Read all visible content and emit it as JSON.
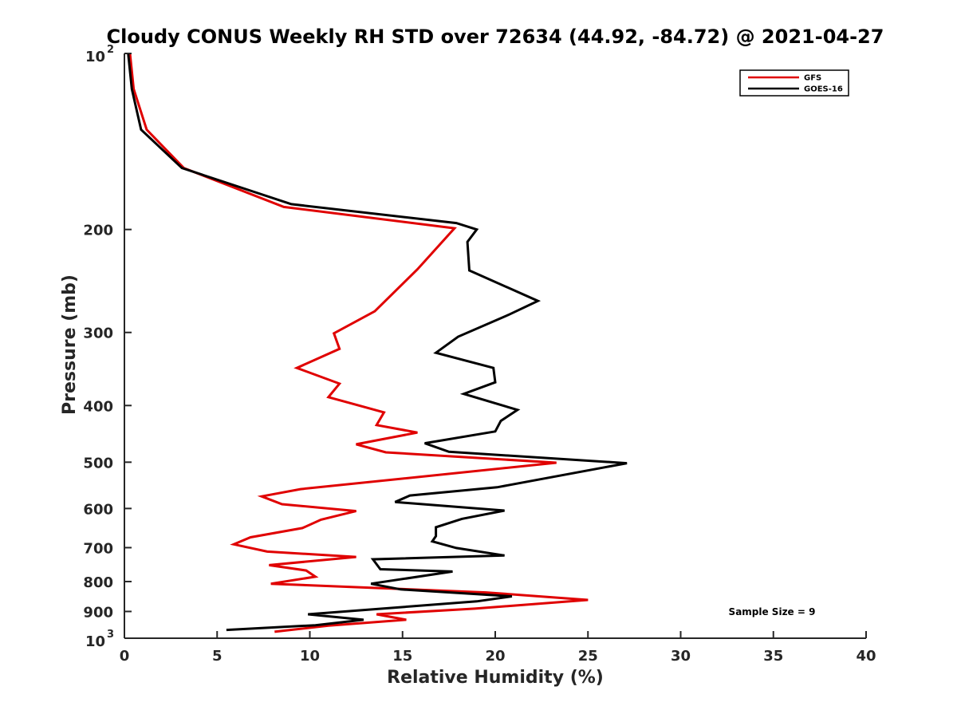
{
  "chart_data": {
    "type": "line",
    "title": "Cloudy CONUS Weekly RH STD over 72634 (44.92, -84.72) @ 2021-04-27",
    "xlabel": "Relative Humidity (%)",
    "ylabel": "Pressure (mb)",
    "xlim": [
      0,
      40
    ],
    "ylim": [
      100,
      1000
    ],
    "y_scale": "log",
    "y_reversed": true,
    "x_ticks": [
      "0",
      "5",
      "10",
      "15",
      "20",
      "25",
      "30",
      "35",
      "40"
    ],
    "y_ticks": [
      {
        "value": 100,
        "base": "10",
        "exp": "2"
      },
      {
        "value": 200,
        "label": "200"
      },
      {
        "value": 300,
        "label": "300"
      },
      {
        "value": 400,
        "label": "400"
      },
      {
        "value": 500,
        "label": "500"
      },
      {
        "value": 600,
        "label": "600"
      },
      {
        "value": 700,
        "label": "700"
      },
      {
        "value": 800,
        "label": "800"
      },
      {
        "value": 900,
        "label": "900"
      },
      {
        "value": 1000,
        "base": "10",
        "exp": "3"
      }
    ],
    "legend_position": "top-right",
    "annotation": "Sample Size = 9",
    "series": [
      {
        "name": "GFS",
        "color": "#e00000",
        "points": [
          [
            0.3,
            100
          ],
          [
            0.5,
            115
          ],
          [
            1.2,
            135
          ],
          [
            3.2,
            157
          ],
          [
            8.6,
            183
          ],
          [
            17.8,
            199
          ],
          [
            15.8,
            234
          ],
          [
            13.5,
            276
          ],
          [
            11.3,
            301
          ],
          [
            11.6,
            320
          ],
          [
            9.3,
            345
          ],
          [
            11.6,
            367
          ],
          [
            11.0,
            387
          ],
          [
            14.0,
            411
          ],
          [
            13.6,
            432
          ],
          [
            15.8,
            445
          ],
          [
            12.5,
            466
          ],
          [
            14.1,
            481
          ],
          [
            23.3,
            501
          ],
          [
            9.5,
            556
          ],
          [
            7.4,
            572
          ],
          [
            8.5,
            590
          ],
          [
            12.5,
            606
          ],
          [
            10.6,
            627
          ],
          [
            9.6,
            648
          ],
          [
            6.8,
            672
          ],
          [
            5.9,
            691
          ],
          [
            7.7,
            711
          ],
          [
            12.5,
            726
          ],
          [
            7.8,
            750
          ],
          [
            9.8,
            766
          ],
          [
            10.3,
            785
          ],
          [
            7.9,
            807
          ],
          [
            19.5,
            835
          ],
          [
            25.0,
            860
          ],
          [
            18.9,
            890
          ],
          [
            13.6,
            910
          ],
          [
            15.2,
            930
          ],
          [
            11.0,
            952
          ],
          [
            8.1,
            975
          ]
        ]
      },
      {
        "name": "GOES-16",
        "color": "#000000",
        "points": [
          [
            0.2,
            100
          ],
          [
            0.4,
            115
          ],
          [
            0.9,
            135
          ],
          [
            3.1,
            157
          ],
          [
            9.0,
            181
          ],
          [
            17.9,
            195
          ],
          [
            19.0,
            200
          ],
          [
            18.5,
            210
          ],
          [
            18.6,
            235
          ],
          [
            22.3,
            265
          ],
          [
            20.7,
            280
          ],
          [
            18.0,
            305
          ],
          [
            16.8,
            325
          ],
          [
            19.9,
            345
          ],
          [
            20.0,
            365
          ],
          [
            18.3,
            382
          ],
          [
            21.2,
            407
          ],
          [
            20.3,
            425
          ],
          [
            20.0,
            443
          ],
          [
            16.2,
            464
          ],
          [
            17.5,
            480
          ],
          [
            27.1,
            502
          ],
          [
            20.1,
            552
          ],
          [
            15.4,
            570
          ],
          [
            14.6,
            585
          ],
          [
            20.5,
            605
          ],
          [
            18.2,
            625
          ],
          [
            16.8,
            646
          ],
          [
            16.8,
            669
          ],
          [
            16.6,
            683
          ],
          [
            17.9,
            701
          ],
          [
            20.5,
            722
          ],
          [
            13.4,
            733
          ],
          [
            13.8,
            762
          ],
          [
            17.7,
            769
          ],
          [
            13.3,
            807
          ],
          [
            14.9,
            825
          ],
          [
            20.9,
            848
          ],
          [
            19.0,
            865
          ],
          [
            9.9,
            910
          ],
          [
            12.9,
            930
          ],
          [
            10.3,
            950
          ],
          [
            5.5,
            968
          ]
        ]
      }
    ]
  }
}
